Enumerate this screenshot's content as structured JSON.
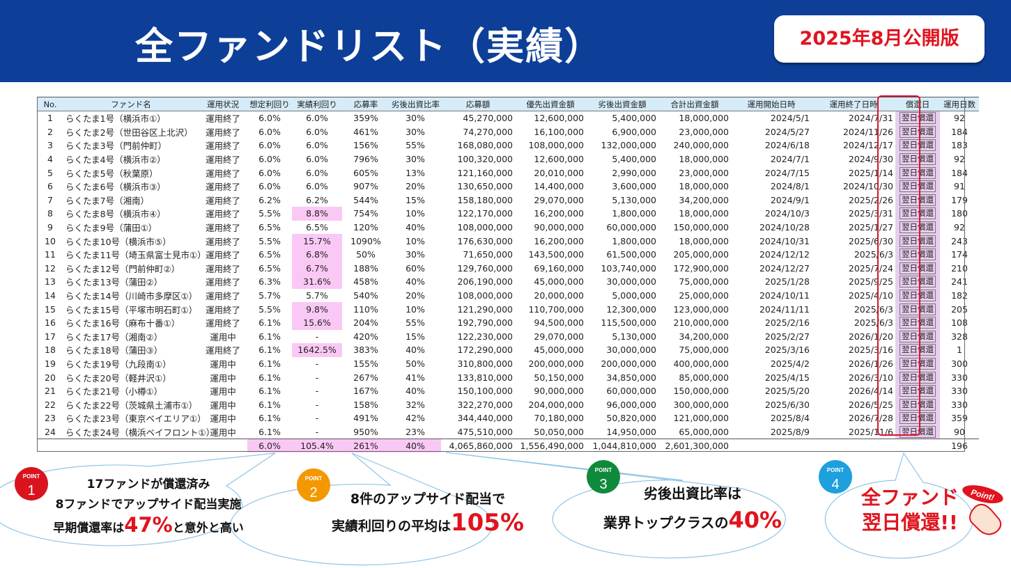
{
  "header": {
    "title": "全ファンドリスト（実績）",
    "badge": "2025年8月公開版"
  },
  "table": {
    "columns": [
      "No.",
      "ファンド名",
      "運用状況",
      "想定利回り",
      "実績利回り",
      "応募率",
      "劣後出資比率",
      "応募額",
      "優先出資金額",
      "劣後出資金額",
      "合計出資金額",
      "運用開始日時",
      "運用終了日時",
      "償還日",
      "運用日数"
    ],
    "rows": [
      {
        "no": "1",
        "name": "らくたま1号（横浜市①）",
        "status": "運用終了",
        "exp": "6.0%",
        "act": "6.0%",
        "rate": "359%",
        "sub": "30%",
        "amount": "45,270,000",
        "senior": "12,600,000",
        "junior": "5,400,000",
        "total": "18,000,000",
        "start": "2024/5/1",
        "end": "2024/7/31",
        "repay": "翌日償還",
        "days": "92"
      },
      {
        "no": "2",
        "name": "らくたま2号（世田谷区上北沢）",
        "status": "運用終了",
        "exp": "6.0%",
        "act": "6.0%",
        "rate": "461%",
        "sub": "30%",
        "amount": "74,270,000",
        "senior": "16,100,000",
        "junior": "6,900,000",
        "total": "23,000,000",
        "start": "2024/5/27",
        "end": "2024/11/26",
        "repay": "翌日償還",
        "days": "184"
      },
      {
        "no": "3",
        "name": "らくたま3号（門前仲町）",
        "status": "運用終了",
        "exp": "6.0%",
        "act": "6.0%",
        "rate": "156%",
        "sub": "55%",
        "amount": "168,080,000",
        "senior": "108,000,000",
        "junior": "132,000,000",
        "total": "240,000,000",
        "start": "2024/6/18",
        "end": "2024/12/17",
        "repay": "翌日償還",
        "days": "183"
      },
      {
        "no": "4",
        "name": "らくたま4号（横浜市②）",
        "status": "運用終了",
        "exp": "6.0%",
        "act": "6.0%",
        "rate": "796%",
        "sub": "30%",
        "amount": "100,320,000",
        "senior": "12,600,000",
        "junior": "5,400,000",
        "total": "18,000,000",
        "start": "2024/7/1",
        "end": "2024/9/30",
        "repay": "翌日償還",
        "days": "92"
      },
      {
        "no": "5",
        "name": "らくたま5号（秋葉原）",
        "status": "運用終了",
        "exp": "6.0%",
        "act": "6.0%",
        "rate": "605%",
        "sub": "13%",
        "amount": "121,160,000",
        "senior": "20,010,000",
        "junior": "2,990,000",
        "total": "23,000,000",
        "start": "2024/7/15",
        "end": "2025/1/14",
        "repay": "翌日償還",
        "days": "184"
      },
      {
        "no": "6",
        "name": "らくたま6号（横浜市③）",
        "status": "運用終了",
        "exp": "6.0%",
        "act": "6.0%",
        "rate": "907%",
        "sub": "20%",
        "amount": "130,650,000",
        "senior": "14,400,000",
        "junior": "3,600,000",
        "total": "18,000,000",
        "start": "2024/8/1",
        "end": "2024/10/30",
        "repay": "翌日償還",
        "days": "91"
      },
      {
        "no": "7",
        "name": "らくたま7号（湘南）",
        "status": "運用終了",
        "exp": "6.2%",
        "act": "6.2%",
        "rate": "544%",
        "sub": "15%",
        "amount": "158,180,000",
        "senior": "29,070,000",
        "junior": "5,130,000",
        "total": "34,200,000",
        "start": "2024/9/1",
        "end": "2025/2/26",
        "repay": "翌日償還",
        "days": "179"
      },
      {
        "no": "8",
        "name": "らくたま8号（横浜市④）",
        "status": "運用終了",
        "exp": "5.5%",
        "act": "8.8%",
        "hl": true,
        "rate": "754%",
        "sub": "10%",
        "amount": "122,170,000",
        "senior": "16,200,000",
        "junior": "1,800,000",
        "total": "18,000,000",
        "start": "2024/10/3",
        "end": "2025/3/31",
        "repay": "翌日償還",
        "days": "180"
      },
      {
        "no": "9",
        "name": "らくたま9号（蒲田①）",
        "status": "運用終了",
        "exp": "6.5%",
        "act": "6.5%",
        "rate": "120%",
        "sub": "40%",
        "amount": "108,000,000",
        "senior": "90,000,000",
        "junior": "60,000,000",
        "total": "150,000,000",
        "start": "2024/10/28",
        "end": "2025/1/27",
        "repay": "翌日償還",
        "days": "92"
      },
      {
        "no": "10",
        "name": "らくたま10号（横浜市⑤）",
        "status": "運用終了",
        "exp": "5.5%",
        "act": "15.7%",
        "hl": true,
        "rate": "1090%",
        "sub": "10%",
        "amount": "176,630,000",
        "senior": "16,200,000",
        "junior": "1,800,000",
        "total": "18,000,000",
        "start": "2024/10/31",
        "end": "2025/6/30",
        "repay": "翌日償還",
        "days": "243"
      },
      {
        "no": "11",
        "name": "らくたま11号（埼玉県富士見市①）",
        "status": "運用終了",
        "exp": "6.5%",
        "act": "6.8%",
        "hl": true,
        "rate": "50%",
        "sub": "30%",
        "amount": "71,650,000",
        "senior": "143,500,000",
        "junior": "61,500,000",
        "total": "205,000,000",
        "start": "2024/12/12",
        "end": "2025/6/3",
        "repay": "翌日償還",
        "days": "174"
      },
      {
        "no": "12",
        "name": "らくたま12号（門前仲町②）",
        "status": "運用終了",
        "exp": "6.5%",
        "act": "6.7%",
        "hl": true,
        "rate": "188%",
        "sub": "60%",
        "amount": "129,760,000",
        "senior": "69,160,000",
        "junior": "103,740,000",
        "total": "172,900,000",
        "start": "2024/12/27",
        "end": "2025/7/24",
        "repay": "翌日償還",
        "days": "210"
      },
      {
        "no": "13",
        "name": "らくたま13号（蒲田②）",
        "status": "運用終了",
        "exp": "6.3%",
        "act": "31.6%",
        "hl": true,
        "rate": "458%",
        "sub": "40%",
        "amount": "206,190,000",
        "senior": "45,000,000",
        "junior": "30,000,000",
        "total": "75,000,000",
        "start": "2025/1/28",
        "end": "2025/9/25",
        "repay": "翌日償還",
        "days": "241"
      },
      {
        "no": "14",
        "name": "らくたま14号（川崎市多摩区①）",
        "status": "運用終了",
        "exp": "5.7%",
        "act": "5.7%",
        "rate": "540%",
        "sub": "20%",
        "amount": "108,000,000",
        "senior": "20,000,000",
        "junior": "5,000,000",
        "total": "25,000,000",
        "start": "2024/10/11",
        "end": "2025/4/10",
        "repay": "翌日償還",
        "days": "182"
      },
      {
        "no": "15",
        "name": "らくたま15号（平塚市明石町①）",
        "status": "運用終了",
        "exp": "5.5%",
        "act": "9.8%",
        "hl": true,
        "rate": "110%",
        "sub": "10%",
        "amount": "121,290,000",
        "senior": "110,700,000",
        "junior": "12,300,000",
        "total": "123,000,000",
        "start": "2024/11/11",
        "end": "2025/6/3",
        "repay": "翌日償還",
        "days": "205"
      },
      {
        "no": "16",
        "name": "らくたま16号（麻布十番①）",
        "status": "運用終了",
        "exp": "6.1%",
        "act": "15.6%",
        "hl": true,
        "rate": "204%",
        "sub": "55%",
        "amount": "192,790,000",
        "senior": "94,500,000",
        "junior": "115,500,000",
        "total": "210,000,000",
        "start": "2025/2/16",
        "end": "2025/6/3",
        "repay": "翌日償還",
        "days": "108"
      },
      {
        "no": "17",
        "name": "らくたま17号（湘南②）",
        "status": "運用中",
        "exp": "6.1%",
        "act": "-",
        "rate": "420%",
        "sub": "15%",
        "amount": "122,230,000",
        "senior": "29,070,000",
        "junior": "5,130,000",
        "total": "34,200,000",
        "start": "2025/2/27",
        "end": "2026/1/20",
        "repay": "翌日償還",
        "days": "328"
      },
      {
        "no": "18",
        "name": "らくたま18号（蒲田③）",
        "status": "運用終了",
        "exp": "6.1%",
        "act": "1642.5%",
        "hl": true,
        "rate": "383%",
        "sub": "40%",
        "amount": "172,290,000",
        "senior": "45,000,000",
        "junior": "30,000,000",
        "total": "75,000,000",
        "start": "2025/3/16",
        "end": "2025/3/16",
        "repay": "翌日償還",
        "days": "1"
      },
      {
        "no": "19",
        "name": "らくたま19号（九段南①）",
        "status": "運用中",
        "exp": "6.1%",
        "act": "-",
        "rate": "155%",
        "sub": "50%",
        "amount": "310,800,000",
        "senior": "200,000,000",
        "junior": "200,000,000",
        "total": "400,000,000",
        "start": "2025/4/2",
        "end": "2026/1/26",
        "repay": "翌日償還",
        "days": "300"
      },
      {
        "no": "20",
        "name": "らくたま20号（軽井沢①）",
        "status": "運用中",
        "exp": "6.1%",
        "act": "-",
        "rate": "267%",
        "sub": "41%",
        "amount": "133,810,000",
        "senior": "50,150,000",
        "junior": "34,850,000",
        "total": "85,000,000",
        "start": "2025/4/15",
        "end": "2026/3/10",
        "repay": "翌日償還",
        "days": "330"
      },
      {
        "no": "21",
        "name": "らくたま21号（小樽①）",
        "status": "運用中",
        "exp": "6.1%",
        "act": "-",
        "rate": "167%",
        "sub": "40%",
        "amount": "150,100,000",
        "senior": "90,000,000",
        "junior": "60,000,000",
        "total": "150,000,000",
        "start": "2025/5/20",
        "end": "2026/4/14",
        "repay": "翌日償還",
        "days": "330"
      },
      {
        "no": "22",
        "name": "らくたま22号（茨城県土浦市①）",
        "status": "運用中",
        "exp": "6.1%",
        "act": "-",
        "rate": "158%",
        "sub": "32%",
        "amount": "322,270,000",
        "senior": "204,000,000",
        "junior": "96,000,000",
        "total": "300,000,000",
        "start": "2025/6/30",
        "end": "2026/5/25",
        "repay": "翌日償還",
        "days": "330"
      },
      {
        "no": "23",
        "name": "らくたま23号（東京ベイエリア①）",
        "status": "運用中",
        "exp": "6.1%",
        "act": "-",
        "rate": "491%",
        "sub": "42%",
        "amount": "344,440,000",
        "senior": "70,180,000",
        "junior": "50,820,000",
        "total": "121,000,000",
        "start": "2025/8/4",
        "end": "2026/7/28",
        "repay": "翌日償還",
        "days": "359"
      },
      {
        "no": "24",
        "name": "らくたま24号（横浜ベイフロント①）",
        "status": "運用中",
        "exp": "6.1%",
        "act": "-",
        "rate": "950%",
        "sub": "23%",
        "amount": "475,510,000",
        "senior": "50,050,000",
        "junior": "14,950,000",
        "total": "65,000,000",
        "start": "2025/8/9",
        "end": "2025/11/6",
        "repay": "翌日償還",
        "days": "90"
      }
    ],
    "totals": {
      "exp": "6.0%",
      "act": "105.4%",
      "rate": "261%",
      "sub": "40%",
      "amount": "4,065,860,000",
      "senior": "1,556,490,000",
      "junior": "1,044,810,000",
      "total": "2,601,300,000",
      "days": "196"
    }
  },
  "points": [
    {
      "label": "POINT",
      "num": "1",
      "color": "#d9141e",
      "l1": "17ファンドが償還済み",
      "l2": "8ファンドでアップサイド配当実施",
      "l3a": "早期償還率は",
      "l3b": "47%",
      "l3c": "と意外と高い"
    },
    {
      "label": "POINT",
      "num": "2",
      "color": "#f39800",
      "l1": "8件のアップサイド配当で",
      "l2a": "実績利回りの平均は",
      "l2b": "105%"
    },
    {
      "label": "POINT",
      "num": "3",
      "color": "#0f8a3c",
      "l1": "劣後出資比率は",
      "l2a": "業界トップクラスの",
      "l2b": "40%"
    },
    {
      "label": "POINT",
      "num": "4",
      "color": "#1e9fde",
      "l1": "全ファンド",
      "l2": "翌日償還!!",
      "sticker": "Point!"
    }
  ]
}
